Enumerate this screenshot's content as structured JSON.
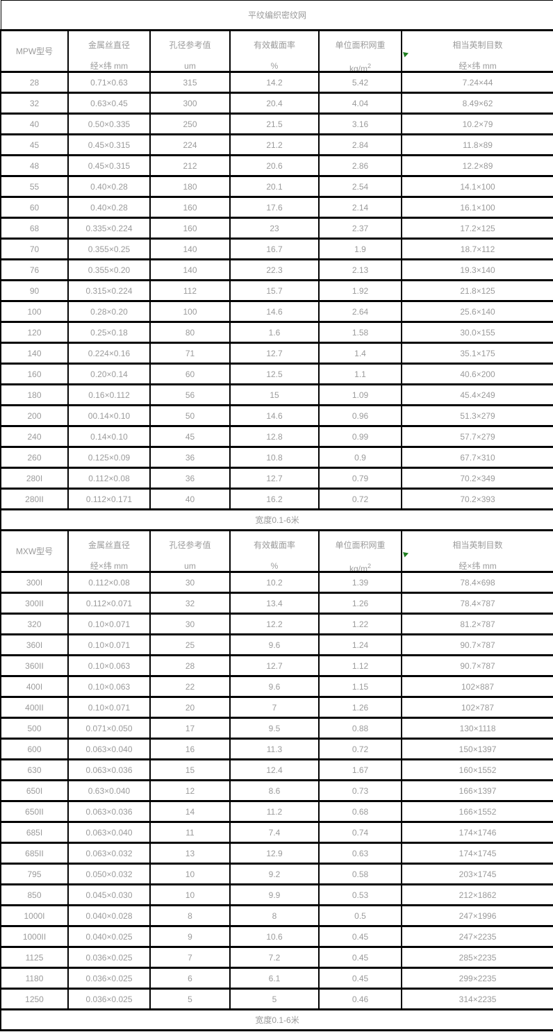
{
  "title": "平纹编织密纹网",
  "column_headers": [
    {
      "line1": "金属丝直径",
      "line2": "经×纬  mm"
    },
    {
      "line1": "孔径参考值",
      "line2": "um"
    },
    {
      "line1": "有效截面率",
      "line2": "%"
    },
    {
      "line1": "单位面积网重",
      "line2_base": "kg/m",
      "line2_sup": "2"
    },
    {
      "line1": "相当英制目数",
      "line2": "经×纬  mm"
    }
  ],
  "sections": [
    {
      "model_label": "MPW型号",
      "footer_note": "宽度0.1-6米",
      "rows": [
        [
          "28",
          "0.71×0.63",
          "315",
          "14.2",
          "5.42",
          "7.24×44"
        ],
        [
          "32",
          "0.63×0.45",
          "300",
          "20.4",
          "4.04",
          "8.49×62"
        ],
        [
          "40",
          "0.50×0.335",
          "250",
          "21.5",
          "3.16",
          "10.2×79"
        ],
        [
          "45",
          "0.45×0.315",
          "224",
          "21.2",
          "2.84",
          "11.8×89"
        ],
        [
          "48",
          "0.45×0.315",
          "212",
          "20.6",
          "2.86",
          "12.2×89"
        ],
        [
          "55",
          "0.40×0.28",
          "180",
          "20.1",
          "2.54",
          "14.1×100"
        ],
        [
          "60",
          "0.40×0.28",
          "160",
          "17.6",
          "2.14",
          "16.1×100"
        ],
        [
          "68",
          "0.335×0.224",
          "160",
          "23",
          "2.37",
          "17.2×125"
        ],
        [
          "70",
          "0.355×0.25",
          "140",
          "16.7",
          "1.9",
          "18.7×112"
        ],
        [
          "76",
          "0.355×0.20",
          "140",
          "22.3",
          "2.13",
          "19.3×140"
        ],
        [
          "90",
          "0.315×0.224",
          "112",
          "15.7",
          "1.92",
          "21.8×125"
        ],
        [
          "100",
          "0.28×0.20",
          "100",
          "14.6",
          "2.64",
          "25.6×140"
        ],
        [
          "120",
          "0.25×0.18",
          "80",
          "1.6",
          "1.58",
          "30.0×155"
        ],
        [
          "140",
          "0.224×0.16",
          "71",
          "12.7",
          "1.4",
          "35.1×175"
        ],
        [
          "160",
          "0.20×0.14",
          "60",
          "12.5",
          "1.1",
          "40.6×200"
        ],
        [
          "180",
          "0.16×0.112",
          "56",
          "15",
          "1.09",
          "45.4×249"
        ],
        [
          "200",
          "00.14×0.10",
          "50",
          "14.6",
          "0.96",
          "51.3×279"
        ],
        [
          "240",
          "0.14×0.10",
          "45",
          "12.8",
          "0.99",
          "57.7×279"
        ],
        [
          "260",
          "0.125×0.09",
          "36",
          "10.8",
          "0.9",
          "67.7×310"
        ],
        [
          "280I",
          "0.112×0.08",
          "36",
          "12.7",
          "0.79",
          "70.2×349"
        ],
        [
          "280II",
          "0.112×0.171",
          "40",
          "16.2",
          "0.72",
          "70.2×393"
        ]
      ]
    },
    {
      "model_label": "MXW型号",
      "footer_note": "宽度0.1-6米",
      "rows": [
        [
          "300I",
          "0.112×0.08",
          "30",
          "10.2",
          "1.39",
          "78.4×698"
        ],
        [
          "300II",
          "0.112×0.071",
          "32",
          "13.4",
          "1.26",
          "78.4×787"
        ],
        [
          "320",
          "0.10×0.071",
          "30",
          "12.2",
          "1.22",
          "81.2×787"
        ],
        [
          "360I",
          "0.10×0.071",
          "25",
          "9.6",
          "1.24",
          "90.7×787"
        ],
        [
          "360II",
          "0.10×0.063",
          "28",
          "12.7",
          "1.12",
          "90.7×787"
        ],
        [
          "400I",
          "0.10×0.063",
          "22",
          "9.6",
          "1.15",
          "102×887"
        ],
        [
          "400II",
          "0.10×0.071",
          "20",
          "7",
          "1.26",
          "102×787"
        ],
        [
          "500",
          "0.071×0.050",
          "17",
          "9.5",
          "0.88",
          "130×1118"
        ],
        [
          "600",
          "0.063×0.040",
          "16",
          "11.3",
          "0.72",
          "150×1397"
        ],
        [
          "630",
          "0.063×0.036",
          "15",
          "12.4",
          "1.67",
          "160×1552"
        ],
        [
          "650I",
          "0.63×0.040",
          "12",
          "8.6",
          "0.73",
          "166×1397"
        ],
        [
          "650II",
          "0.063×0.036",
          "14",
          "11.2",
          "0.68",
          "166×1552"
        ],
        [
          "685I",
          "0.063×0.040",
          "11",
          "7.4",
          "0.74",
          "174×1746"
        ],
        [
          "685II",
          "0.063×0.032",
          "13",
          "12.9",
          "0.63",
          "174×1745"
        ],
        [
          "795",
          "0.050×0.032",
          "10",
          "9.2",
          "0.58",
          "203×1745"
        ],
        [
          "850",
          "0.045×0.030",
          "10",
          "9.9",
          "0.53",
          "212×1862"
        ],
        [
          "1000I",
          "0.040×0.028",
          "8",
          "8",
          "0.5",
          "247×1996"
        ],
        [
          "1000II",
          "0.040×0.025",
          "9",
          "10.6",
          "0.45",
          "247×2235"
        ],
        [
          "1125",
          "0.036×0.025",
          "7",
          "7.2",
          "0.45",
          "285×2235"
        ],
        [
          "1180",
          "0.036×0.025",
          "6",
          "6.1",
          "0.45",
          "299×2235"
        ],
        [
          "1250",
          "0.036×0.025",
          "5",
          "5",
          "0.46",
          "314×2235"
        ]
      ]
    }
  ],
  "colors": {
    "border": "#000000",
    "text": "#9b9b9b",
    "comment_marker_green": "#1e7d1e"
  }
}
